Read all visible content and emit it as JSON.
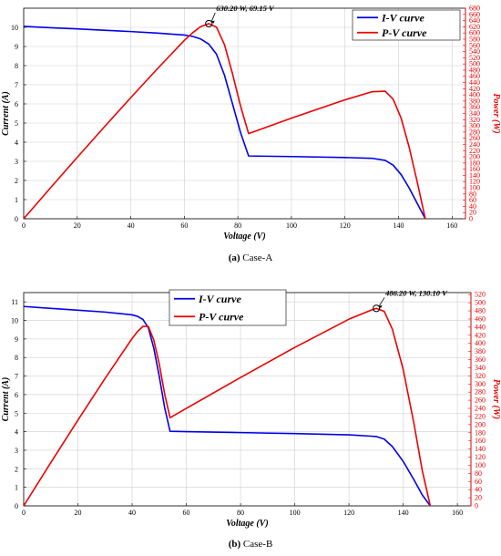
{
  "chart_data": [
    {
      "type": "line",
      "id": "case-a",
      "caption_prefix": "(a)",
      "caption_text": "Case-A",
      "xlabel": "Voltage (V)",
      "ylabel_left": "Current (A)",
      "ylabel_right": "Power (W)",
      "xlim": [
        0,
        165
      ],
      "ylim_left": [
        0,
        11
      ],
      "ylim_right": [
        0,
        680
      ],
      "x_ticks": [
        0,
        20,
        40,
        60,
        80,
        100,
        120,
        140,
        160
      ],
      "y_left_ticks": [
        0,
        1,
        2,
        3,
        4,
        5,
        6,
        7,
        8,
        9,
        10
      ],
      "y_right_ticks": [
        0,
        20,
        40,
        60,
        80,
        100,
        120,
        140,
        160,
        180,
        200,
        220,
        240,
        260,
        280,
        300,
        320,
        340,
        360,
        380,
        400,
        420,
        440,
        460,
        480,
        500,
        520,
        540,
        560,
        580,
        600,
        620,
        640,
        660,
        680
      ],
      "grid": true,
      "legend_position": "top-right",
      "series": [
        {
          "name": "I-V curve",
          "color": "#0000ee",
          "axis": "left",
          "x": [
            0,
            10,
            20,
            30,
            40,
            50,
            60,
            63,
            66,
            69.15,
            72,
            75,
            78,
            81,
            84,
            100,
            120,
            130,
            135,
            138,
            141,
            144,
            147,
            150
          ],
          "y": [
            10.05,
            9.98,
            9.92,
            9.85,
            9.78,
            9.7,
            9.6,
            9.53,
            9.4,
            9.12,
            8.6,
            7.5,
            6.0,
            4.5,
            3.28,
            3.25,
            3.2,
            3.16,
            3.05,
            2.8,
            2.3,
            1.6,
            0.8,
            0
          ]
        },
        {
          "name": "P-V curve",
          "color": "#ee0000",
          "axis": "right",
          "x": [
            0,
            10,
            20,
            30,
            40,
            50,
            60,
            63,
            66,
            69.15,
            72,
            75,
            78,
            81,
            84,
            100,
            120,
            130,
            135,
            138,
            141,
            144,
            147,
            150
          ],
          "y": [
            0,
            99.8,
            198.4,
            295.5,
            391.2,
            485,
            576,
            600,
            620,
            630.2,
            619,
            562,
            468,
            364,
            275,
            325,
            384,
            410,
            412,
            386,
            324,
            230,
            118,
            0
          ]
        }
      ],
      "annotation": {
        "text": "630.20 W, 69.15 V",
        "x": 69.15,
        "y": 630.2,
        "axis": "right"
      }
    },
    {
      "type": "line",
      "id": "case-b",
      "caption_prefix": "(b)",
      "caption_text": "Case-B",
      "xlabel": "Voltage (V)",
      "ylabel_left": "Current (A)",
      "ylabel_right": "Power (W)",
      "xlim": [
        0,
        165
      ],
      "ylim_left": [
        0,
        11.5
      ],
      "ylim_right": [
        0,
        525
      ],
      "x_ticks": [
        0,
        20,
        40,
        60,
        80,
        100,
        120,
        140,
        160
      ],
      "y_left_ticks": [
        0,
        1,
        2,
        3,
        4,
        5,
        6,
        7,
        8,
        9,
        10,
        11
      ],
      "y_right_ticks": [
        0,
        20,
        40,
        60,
        80,
        100,
        120,
        140,
        160,
        180,
        200,
        220,
        240,
        260,
        280,
        300,
        320,
        340,
        360,
        380,
        400,
        420,
        440,
        460,
        480,
        500,
        520
      ],
      "grid": true,
      "legend_position": "top-left",
      "series": [
        {
          "name": "I-V curve",
          "color": "#0000ee",
          "axis": "left",
          "x": [
            0,
            10,
            20,
            30,
            40,
            42,
            44,
            46,
            48,
            50,
            52,
            54,
            60,
            80,
            100,
            120,
            128,
            130.1,
            133,
            136,
            140,
            144,
            147,
            150
          ],
          "y": [
            10.75,
            10.65,
            10.55,
            10.45,
            10.3,
            10.22,
            10.05,
            9.6,
            8.5,
            7.0,
            5.3,
            4.02,
            4.0,
            3.95,
            3.9,
            3.83,
            3.76,
            3.74,
            3.6,
            3.2,
            2.4,
            1.4,
            0.6,
            0
          ]
        },
        {
          "name": "P-V curve",
          "color": "#ee0000",
          "axis": "right",
          "x": [
            0,
            10,
            20,
            30,
            40,
            42,
            44,
            46,
            48,
            50,
            52,
            54,
            60,
            80,
            100,
            120,
            128,
            130.1,
            133,
            136,
            140,
            144,
            147,
            150
          ],
          "y": [
            0,
            106.5,
            211,
            313.5,
            412,
            429,
            442,
            441.6,
            408,
            350,
            275.6,
            217,
            240,
            316,
            390,
            459.6,
            481.3,
            486.2,
            478.8,
            435.2,
            336,
            201.6,
            88.2,
            0
          ]
        }
      ],
      "annotation": {
        "text": "486.20 W, 130.10 V",
        "x": 130.1,
        "y": 486.2,
        "axis": "right"
      }
    }
  ]
}
